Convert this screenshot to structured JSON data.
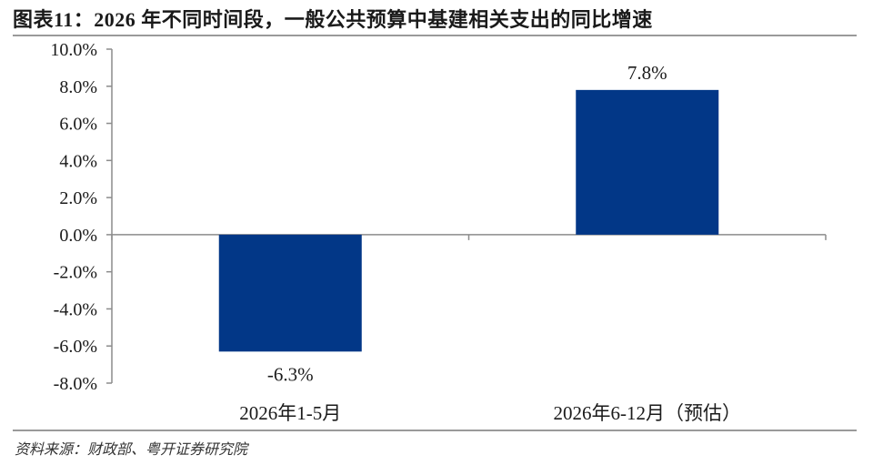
{
  "header": {
    "title": "图表11：2026 年不同时间段，一般公共预算中基建相关支出的同比增速"
  },
  "footer": {
    "source": "资料来源：财政部、粤开证券研究院"
  },
  "colors": {
    "bar": "#023787",
    "axis": "#8c8c8c"
  },
  "chart_data": {
    "type": "bar",
    "categories": [
      "2026年1-5月",
      "2026年6-12月（预估）"
    ],
    "values": [
      -6.3,
      7.8
    ],
    "data_labels": [
      "-6.3%",
      "7.8%"
    ],
    "y_ticks": [
      10,
      8,
      6,
      4,
      2,
      0,
      -2,
      -4,
      -6,
      -8
    ],
    "y_tick_labels": [
      "10.0%",
      "8.0%",
      "6.0%",
      "4.0%",
      "2.0%",
      "0.0%",
      "-2.0%",
      "-4.0%",
      "-6.0%",
      "-8.0%"
    ],
    "ylim": [
      -8,
      10
    ],
    "grid": false,
    "legend": "none"
  }
}
